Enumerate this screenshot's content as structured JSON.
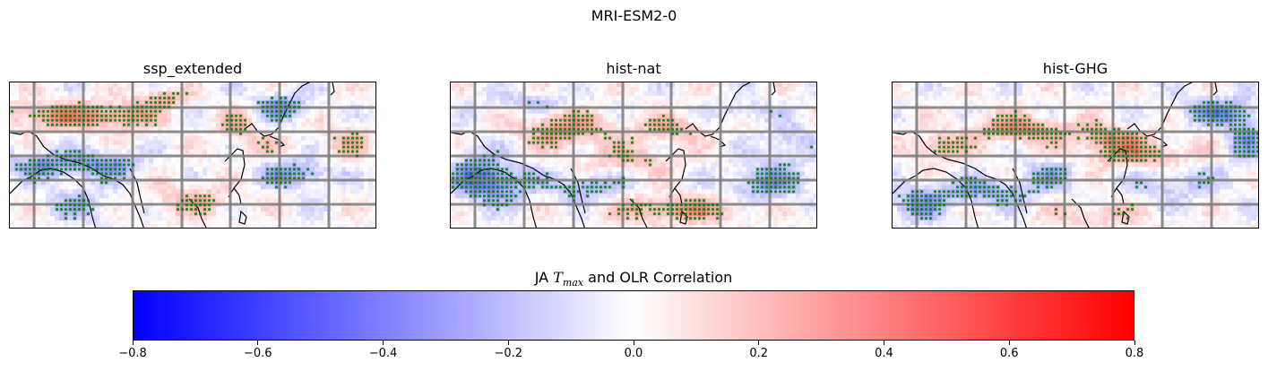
{
  "figure": {
    "suptitle": "MRI-ESM2-0"
  },
  "panels": [
    {
      "title": "ssp_extended"
    },
    {
      "title": "hist-nat"
    },
    {
      "title": "hist-GHG"
    }
  ],
  "colorbar": {
    "label_prefix": "JA ",
    "label_var": "T",
    "label_sub": "max",
    "label_suffix": " and OLR Correlation",
    "ticks": [
      "−0.8",
      "−0.6",
      "−0.4",
      "−0.2",
      "0.0",
      "0.2",
      "0.4",
      "0.6",
      "0.8"
    ],
    "colormap": "bwr",
    "colors": {
      "low": "#0000ff",
      "mid": "#ffffff",
      "high": "#ff0000",
      "stipple": "#008000",
      "grid": "#808080"
    }
  },
  "chart_data": {
    "type": "heatmap",
    "title": "MRI-ESM2-0",
    "subplots": [
      "ssp_extended",
      "hist-nat",
      "hist-GHG"
    ],
    "value_label": "JA Tmax and OLR Correlation",
    "vmin": -0.8,
    "vmax": 0.8,
    "colorbar_ticks": [
      -0.8,
      -0.6,
      -0.4,
      -0.2,
      0.0,
      0.2,
      0.4,
      0.6,
      0.8
    ],
    "grid": true,
    "stippling": "significant correlation (green dots)"
  }
}
